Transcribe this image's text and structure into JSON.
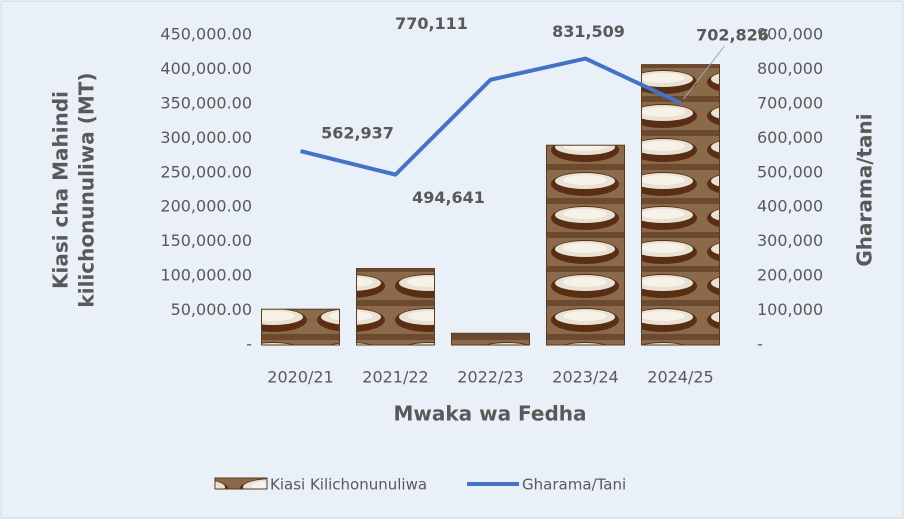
{
  "chart_data": {
    "type": "bar-line",
    "categories": [
      "2020/21",
      "2021/22",
      "2022/23",
      "2023/24",
      "2024/25"
    ],
    "xlabel": "Mwaka wa Fedha",
    "ylabel": [
      "Kiasi cha Mahindi",
      "kilichonunuliwa  (MT)"
    ],
    "y2label": "Gharama/tani",
    "series": [
      {
        "name": "Kiasi Kilichonunuliwa",
        "type": "bar",
        "color": "#7a4a2a",
        "values": [
          52000,
          111000,
          17000,
          290000,
          407000
        ]
      },
      {
        "name": "Gharama/Tani",
        "type": "line",
        "axis": "y2",
        "color": "#4472c4",
        "values": [
          562937,
          494641,
          770111,
          831509,
          702826
        ],
        "value_labels": [
          "562,937",
          "494,641",
          "770,111",
          "831,509",
          "702,826"
        ]
      }
    ],
    "ylim": [
      0,
      450000
    ],
    "yticks": [
      {
        "value": 0,
        "label": "-"
      },
      {
        "value": 50000,
        "label": "50,000.00"
      },
      {
        "value": 100000,
        "label": "100,000.00"
      },
      {
        "value": 150000,
        "label": "150,000.00"
      },
      {
        "value": 200000,
        "label": "200,000.00"
      },
      {
        "value": 250000,
        "label": "250,000.00"
      },
      {
        "value": 300000,
        "label": "300,000.00"
      },
      {
        "value": 350000,
        "label": "350,000.00"
      },
      {
        "value": 400000,
        "label": "400,000.00"
      },
      {
        "value": 450000,
        "label": "450,000.00"
      }
    ],
    "y2lim": [
      0,
      900000
    ],
    "y2ticks": [
      {
        "value": 0,
        "label": "-"
      },
      {
        "value": 100000,
        "label": "100,000"
      },
      {
        "value": 200000,
        "label": "200,000"
      },
      {
        "value": 300000,
        "label": "300,000"
      },
      {
        "value": 400000,
        "label": "400,000"
      },
      {
        "value": 500000,
        "label": "500,000"
      },
      {
        "value": 600000,
        "label": "600,000"
      },
      {
        "value": 700000,
        "label": "700,000"
      },
      {
        "value": 800000,
        "label": "800,000"
      },
      {
        "value": 900000,
        "label": "900,000"
      }
    ],
    "legend": "bottom"
  }
}
